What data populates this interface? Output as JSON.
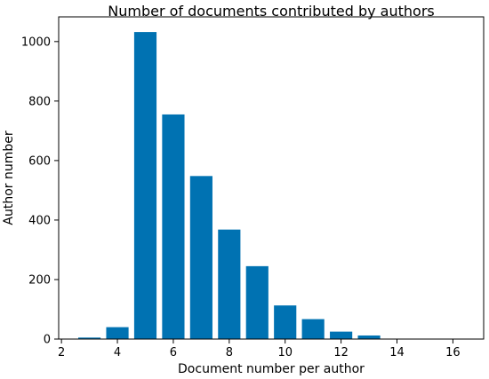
{
  "chart_data": {
    "type": "bar",
    "title": "Number of documents contributed by authors",
    "xlabel": "Document number per author",
    "ylabel": "Author number",
    "x": [
      3,
      4,
      5,
      6,
      7,
      8,
      9,
      10,
      11,
      12,
      13
    ],
    "values": [
      5,
      40,
      1032,
      755,
      548,
      368,
      245,
      113,
      67,
      25,
      12
    ],
    "bar_width": 0.8,
    "xlim": [
      1.9,
      17.1
    ],
    "ylim": [
      0,
      1083
    ],
    "xticks": [
      2,
      4,
      6,
      8,
      10,
      12,
      14,
      16
    ],
    "yticks": [
      0,
      200,
      400,
      600,
      800,
      1000
    ],
    "grid": false,
    "legend": "none",
    "bar_color": "#0072b2"
  }
}
